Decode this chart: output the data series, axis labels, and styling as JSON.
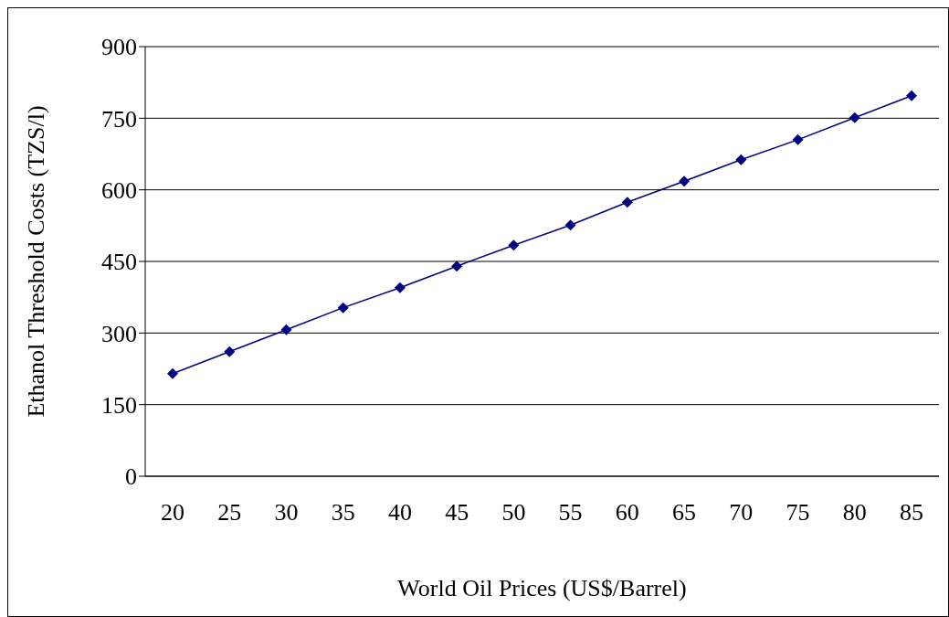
{
  "chart_data": {
    "type": "line",
    "xlabel": "World Oil Prices (US$/Barrel)",
    "ylabel": "Ethanol Threshold Costs (TZS/l)",
    "categories": [
      "20",
      "25",
      "30",
      "35",
      "40",
      "45",
      "50",
      "55",
      "60",
      "65",
      "70",
      "75",
      "80",
      "85"
    ],
    "series": [
      {
        "color": "#000080",
        "values": [
          215,
          261,
          307,
          353,
          395,
          440,
          484,
          526,
          574,
          618,
          663,
          705,
          751,
          797
        ]
      }
    ],
    "ylim": [
      0,
      900
    ],
    "yticks": [
      0,
      150,
      300,
      450,
      600,
      750,
      900
    ],
    "grid": "y",
    "marker": "diamond",
    "line_style": "solid"
  }
}
